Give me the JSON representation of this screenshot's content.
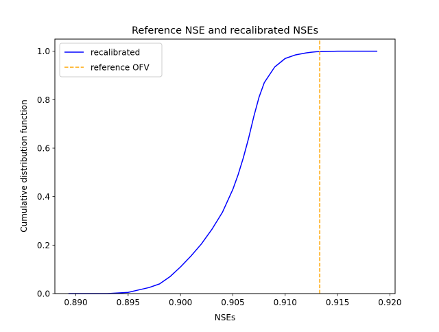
{
  "chart_data": {
    "type": "line",
    "title": "Reference NSE and recalibrated NSEs",
    "xlabel": "NSEs",
    "ylabel": "Cumulative distribution function",
    "xlim": [
      0.888,
      0.9205
    ],
    "ylim": [
      0.0,
      1.05
    ],
    "xticks": [
      0.89,
      0.895,
      0.9,
      0.905,
      0.91,
      0.915,
      0.92
    ],
    "xtick_labels": [
      "0.890",
      "0.895",
      "0.900",
      "0.905",
      "0.910",
      "0.915",
      "0.920"
    ],
    "yticks": [
      0.0,
      0.2,
      0.4,
      0.6,
      0.8,
      1.0
    ],
    "ytick_labels": [
      "0.0",
      "0.2",
      "0.4",
      "0.6",
      "0.8",
      "1.0"
    ],
    "grid": false,
    "legend_position": "top-left",
    "series": [
      {
        "name": "recalibrated",
        "color": "#0000ff",
        "style": "solid",
        "x": [
          0.8893,
          0.893,
          0.895,
          0.896,
          0.897,
          0.898,
          0.899,
          0.9,
          0.901,
          0.902,
          0.903,
          0.904,
          0.905,
          0.9055,
          0.906,
          0.9065,
          0.907,
          0.9075,
          0.908,
          0.909,
          0.91,
          0.911,
          0.912,
          0.9125,
          0.913,
          0.914,
          0.915,
          0.9188
        ],
        "y": [
          0.0,
          0.0,
          0.005,
          0.015,
          0.025,
          0.04,
          0.07,
          0.11,
          0.155,
          0.205,
          0.265,
          0.335,
          0.43,
          0.49,
          0.56,
          0.64,
          0.73,
          0.81,
          0.87,
          0.935,
          0.97,
          0.985,
          0.993,
          0.996,
          0.998,
          0.999,
          1.0,
          1.0
        ]
      },
      {
        "name": "reference OFV",
        "color": "#ffa500",
        "style": "dashed",
        "x": [
          0.9133,
          0.9133
        ],
        "y": [
          0.0,
          1.05
        ]
      }
    ]
  }
}
